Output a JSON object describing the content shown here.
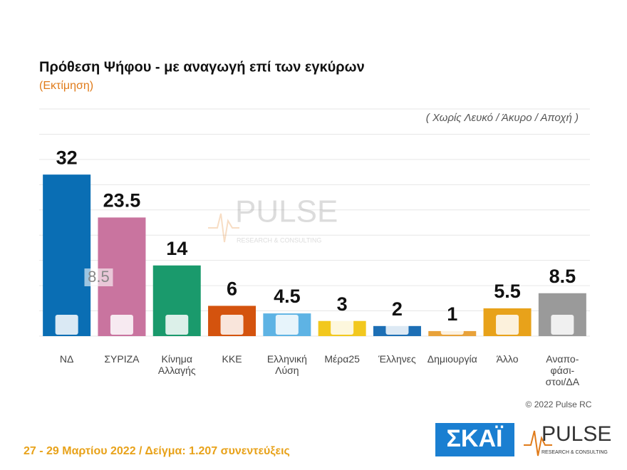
{
  "chart_data": {
    "type": "bar",
    "title": "Πρόθεση Ψήφου - με αναγωγή επί των εγκύρων",
    "subtitle": "(Εκτίμηση)",
    "note": "( Χωρίς Λευκό / Άκυρο / Αποχή )",
    "annotation": "8.5",
    "categories": [
      "ΝΔ",
      "ΣΥΡΙΖΑ",
      "Κίνημα\nΑλλαγής",
      "ΚΚΕ",
      "Ελληνική\nΛύση",
      "Μέρα25",
      "Έλληνες",
      "Δημιουργία",
      "Άλλο",
      "Αναπο-\nφάσι-\nστοι/ΔΑ"
    ],
    "values": [
      32,
      23.5,
      14,
      6,
      4.5,
      3,
      2,
      1,
      5.5,
      8.5
    ],
    "colors": [
      "#0a6eb4",
      "#c9749f",
      "#1a9a6c",
      "#d4530e",
      "#5eb3e4",
      "#f2c81e",
      "#1d6fb5",
      "#e8a23a",
      "#e8a21a",
      "#9a9a9a"
    ],
    "ylim": [
      0,
      45
    ],
    "yticks": [
      0,
      5,
      10,
      15,
      20,
      25,
      30,
      35,
      40,
      45
    ],
    "grid": true
  },
  "footer": {
    "copyright": "© 2022 Pulse RC",
    "fieldwork": "27 - 29  Μαρτίου  2022  /  Δείγμα:  1.207 συνεντεύξεις"
  },
  "logos": {
    "skai": "ΣΚΑΪ",
    "pulse": "PULSE",
    "pulse_tag": "RESEARCH & CONSULTING"
  }
}
